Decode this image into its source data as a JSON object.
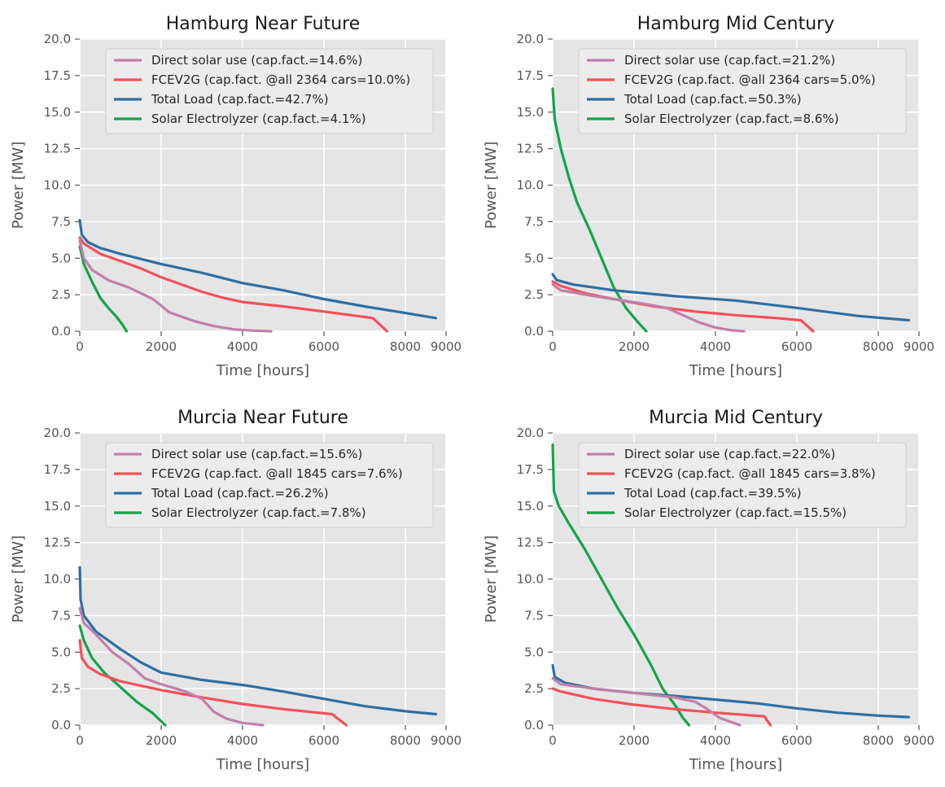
{
  "chart_data": [
    {
      "type": "line",
      "title": "Hamburg Near Future",
      "xlabel": "Time [hours]",
      "ylabel": "Power [MW]",
      "xlim": [
        0,
        9000
      ],
      "ylim": [
        0,
        20
      ],
      "xticks": [
        "0",
        "2000",
        "4000",
        "6000",
        "8000",
        "9000"
      ],
      "yticks": [
        "0.0",
        "2.5",
        "5.0",
        "7.5",
        "10.0",
        "12.5",
        "15.0",
        "17.5",
        "20.0"
      ],
      "grid": true,
      "legend_position": "top-center",
      "series": [
        {
          "name": "Direct solar use (cap.fact.=14.6%)",
          "color": "#c17fa8",
          "points": [
            [
              0,
              6.2
            ],
            [
              100,
              5.0
            ],
            [
              300,
              4.2
            ],
            [
              700,
              3.5
            ],
            [
              1200,
              3.0
            ],
            [
              1800,
              2.2
            ],
            [
              2200,
              1.3
            ],
            [
              2800,
              0.7
            ],
            [
              3300,
              0.35
            ],
            [
              3800,
              0.12
            ],
            [
              4300,
              0.04
            ],
            [
              4700,
              0.0
            ]
          ]
        },
        {
          "name": "FCEV2G (cap.fact. @all 2364 cars=10.0%)",
          "color": "#f2515a",
          "points": [
            [
              0,
              6.4
            ],
            [
              100,
              6.0
            ],
            [
              500,
              5.3
            ],
            [
              1000,
              4.8
            ],
            [
              1500,
              4.3
            ],
            [
              2000,
              3.7
            ],
            [
              2500,
              3.2
            ],
            [
              3000,
              2.7
            ],
            [
              3500,
              2.3
            ],
            [
              4000,
              2.0
            ],
            [
              5000,
              1.7
            ],
            [
              6000,
              1.35
            ],
            [
              7200,
              0.9
            ],
            [
              7550,
              0.0
            ]
          ]
        },
        {
          "name": "Total Load (cap.fact.=42.7%)",
          "color": "#2e6fa3",
          "points": [
            [
              0,
              7.6
            ],
            [
              50,
              6.6
            ],
            [
              200,
              6.1
            ],
            [
              500,
              5.7
            ],
            [
              1000,
              5.3
            ],
            [
              2000,
              4.6
            ],
            [
              3000,
              4.0
            ],
            [
              4000,
              3.3
            ],
            [
              5000,
              2.8
            ],
            [
              6000,
              2.2
            ],
            [
              7000,
              1.7
            ],
            [
              8000,
              1.25
            ],
            [
              8750,
              0.9
            ]
          ]
        },
        {
          "name": "Solar Electrolyzer (cap.fact.=4.1%)",
          "color": "#15a34a",
          "points": [
            [
              0,
              5.8
            ],
            [
              100,
              4.6
            ],
            [
              300,
              3.4
            ],
            [
              500,
              2.3
            ],
            [
              700,
              1.6
            ],
            [
              900,
              1.0
            ],
            [
              1050,
              0.45
            ],
            [
              1150,
              0.0
            ]
          ]
        }
      ]
    },
    {
      "type": "line",
      "title": "Hamburg Mid Century",
      "xlabel": "Time [hours]",
      "ylabel": "Power [MW]",
      "xlim": [
        0,
        9000
      ],
      "ylim": [
        0,
        20
      ],
      "xticks": [
        "0",
        "2000",
        "4000",
        "6000",
        "8000",
        "9000"
      ],
      "yticks": [
        "0.0",
        "2.5",
        "5.0",
        "7.5",
        "10.0",
        "12.5",
        "15.0",
        "17.5",
        "20.0"
      ],
      "grid": true,
      "legend_position": "top-center",
      "series": [
        {
          "name": "Direct solar use (cap.fact.=21.2%)",
          "color": "#c17fa8",
          "points": [
            [
              0,
              3.2
            ],
            [
              200,
              2.8
            ],
            [
              800,
              2.5
            ],
            [
              1500,
              2.2
            ],
            [
              2200,
              1.9
            ],
            [
              2800,
              1.6
            ],
            [
              3200,
              1.1
            ],
            [
              3600,
              0.6
            ],
            [
              4000,
              0.25
            ],
            [
              4400,
              0.06
            ],
            [
              4700,
              0.0
            ]
          ]
        },
        {
          "name": "FCEV2G (cap.fact. @all 2364 cars=5.0%)",
          "color": "#f2515a",
          "points": [
            [
              0,
              3.4
            ],
            [
              200,
              3.1
            ],
            [
              800,
              2.6
            ],
            [
              1500,
              2.2
            ],
            [
              2500,
              1.7
            ],
            [
              3500,
              1.35
            ],
            [
              4500,
              1.1
            ],
            [
              5500,
              0.9
            ],
            [
              6100,
              0.75
            ],
            [
              6400,
              0.0
            ]
          ]
        },
        {
          "name": "Total Load (cap.fact.=50.3%)",
          "color": "#2e6fa3",
          "points": [
            [
              0,
              3.9
            ],
            [
              100,
              3.5
            ],
            [
              500,
              3.2
            ],
            [
              1500,
              2.8
            ],
            [
              3000,
              2.4
            ],
            [
              4500,
              2.1
            ],
            [
              6000,
              1.6
            ],
            [
              7500,
              1.05
            ],
            [
              8750,
              0.75
            ]
          ]
        },
        {
          "name": "Solar Electrolyzer (cap.fact.=8.6%)",
          "color": "#15a34a",
          "points": [
            [
              0,
              16.6
            ],
            [
              50,
              14.5
            ],
            [
              200,
              12.5
            ],
            [
              400,
              10.5
            ],
            [
              600,
              8.8
            ],
            [
              900,
              7.0
            ],
            [
              1200,
              5.0
            ],
            [
              1500,
              3.0
            ],
            [
              1800,
              1.6
            ],
            [
              2100,
              0.6
            ],
            [
              2300,
              0.0
            ]
          ]
        }
      ]
    },
    {
      "type": "line",
      "title": "Murcia Near Future",
      "xlabel": "Time [hours]",
      "ylabel": "Power [MW]",
      "xlim": [
        0,
        9000
      ],
      "ylim": [
        0,
        20
      ],
      "xticks": [
        "0",
        "2000",
        "4000",
        "6000",
        "8000",
        "9000"
      ],
      "yticks": [
        "0.0",
        "2.5",
        "5.0",
        "7.5",
        "10.0",
        "12.5",
        "15.0",
        "17.5",
        "20.0"
      ],
      "grid": true,
      "legend_position": "top-center",
      "series": [
        {
          "name": "Direct solar use (cap.fact.=15.6%)",
          "color": "#c17fa8",
          "points": [
            [
              0,
              8.0
            ],
            [
              100,
              7.0
            ],
            [
              400,
              6.2
            ],
            [
              800,
              5.0
            ],
            [
              1200,
              4.2
            ],
            [
              1600,
              3.2
            ],
            [
              2000,
              2.8
            ],
            [
              2600,
              2.3
            ],
            [
              3000,
              1.8
            ],
            [
              3300,
              0.9
            ],
            [
              3600,
              0.45
            ],
            [
              4000,
              0.15
            ],
            [
              4500,
              0.0
            ]
          ]
        },
        {
          "name": "FCEV2G (cap.fact. @all 1845 cars=7.6%)",
          "color": "#f2515a",
          "points": [
            [
              0,
              5.8
            ],
            [
              50,
              4.6
            ],
            [
              200,
              4.0
            ],
            [
              500,
              3.5
            ],
            [
              1000,
              3.0
            ],
            [
              2000,
              2.4
            ],
            [
              3000,
              1.9
            ],
            [
              4000,
              1.45
            ],
            [
              5000,
              1.1
            ],
            [
              6200,
              0.75
            ],
            [
              6550,
              0.0
            ]
          ]
        },
        {
          "name": "Total Load (cap.fact.=26.2%)",
          "color": "#2e6fa3",
          "points": [
            [
              0,
              10.8
            ],
            [
              20,
              8.6
            ],
            [
              100,
              7.5
            ],
            [
              400,
              6.4
            ],
            [
              1000,
              5.2
            ],
            [
              1500,
              4.3
            ],
            [
              2000,
              3.6
            ],
            [
              3000,
              3.1
            ],
            [
              4000,
              2.75
            ],
            [
              5000,
              2.3
            ],
            [
              6000,
              1.8
            ],
            [
              7000,
              1.3
            ],
            [
              8000,
              0.95
            ],
            [
              8750,
              0.75
            ]
          ]
        },
        {
          "name": "Solar Electrolyzer (cap.fact.=7.8%)",
          "color": "#15a34a",
          "points": [
            [
              0,
              6.8
            ],
            [
              100,
              5.8
            ],
            [
              300,
              4.6
            ],
            [
              600,
              3.6
            ],
            [
              1000,
              2.6
            ],
            [
              1400,
              1.6
            ],
            [
              1800,
              0.8
            ],
            [
              2100,
              0.0
            ]
          ]
        }
      ]
    },
    {
      "type": "line",
      "title": "Murcia Mid Century",
      "xlabel": "Time [hours]",
      "ylabel": "Power [MW]",
      "xlim": [
        0,
        9000
      ],
      "ylim": [
        0,
        20
      ],
      "xticks": [
        "0",
        "2000",
        "4000",
        "6000",
        "8000",
        "9000"
      ],
      "yticks": [
        "0.0",
        "2.5",
        "5.0",
        "7.5",
        "10.0",
        "12.5",
        "15.0",
        "17.5",
        "20.0"
      ],
      "grid": true,
      "legend_position": "top-center",
      "series": [
        {
          "name": "Direct solar use (cap.fact.=22.0%)",
          "color": "#c17fa8",
          "points": [
            [
              0,
              3.2
            ],
            [
              200,
              2.8
            ],
            [
              1000,
              2.5
            ],
            [
              2000,
              2.2
            ],
            [
              3000,
              1.9
            ],
            [
              3500,
              1.6
            ],
            [
              3800,
              1.1
            ],
            [
              4100,
              0.5
            ],
            [
              4600,
              0.0
            ]
          ]
        },
        {
          "name": "FCEV2G (cap.fact. @all 1845 cars=3.8%)",
          "color": "#f2515a",
          "points": [
            [
              0,
              2.5
            ],
            [
              200,
              2.3
            ],
            [
              1000,
              1.8
            ],
            [
              2000,
              1.4
            ],
            [
              3000,
              1.1
            ],
            [
              4000,
              0.85
            ],
            [
              5200,
              0.6
            ],
            [
              5350,
              0.0
            ]
          ]
        },
        {
          "name": "Total Load (cap.fact.=39.5%)",
          "color": "#2e6fa3",
          "points": [
            [
              0,
              4.1
            ],
            [
              50,
              3.3
            ],
            [
              300,
              2.9
            ],
            [
              1000,
              2.5
            ],
            [
              2000,
              2.2
            ],
            [
              3000,
              2.0
            ],
            [
              4000,
              1.75
            ],
            [
              5000,
              1.5
            ],
            [
              6000,
              1.15
            ],
            [
              7000,
              0.85
            ],
            [
              8000,
              0.65
            ],
            [
              8750,
              0.55
            ]
          ]
        },
        {
          "name": "Solar Electrolyzer (cap.fact.=15.5%)",
          "color": "#15a34a",
          "points": [
            [
              0,
              19.2
            ],
            [
              30,
              16.0
            ],
            [
              150,
              15.0
            ],
            [
              400,
              13.8
            ],
            [
              800,
              12.0
            ],
            [
              1200,
              10.0
            ],
            [
              1600,
              8.0
            ],
            [
              2000,
              6.2
            ],
            [
              2400,
              4.2
            ],
            [
              2700,
              2.5
            ],
            [
              3000,
              1.4
            ],
            [
              3200,
              0.5
            ],
            [
              3350,
              0.0
            ]
          ]
        }
      ]
    }
  ]
}
